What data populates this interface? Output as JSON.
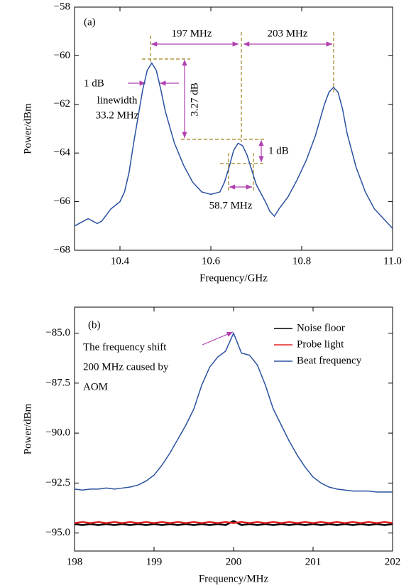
{
  "chart_data": [
    {
      "type": "line",
      "xlabel": "Frequency/GHz",
      "ylabel": "Power/dBm",
      "xlim": [
        10.3,
        11.0
      ],
      "ylim": [
        -68,
        -58
      ],
      "xticks": [
        10.4,
        10.6,
        10.8,
        {
          "value": 11,
          "label": "11.0"
        }
      ],
      "yticks": [
        {
          "value": -68,
          "label": "−68"
        },
        {
          "value": -66,
          "label": "−66"
        },
        {
          "value": -64,
          "label": "−64"
        },
        {
          "value": -62,
          "label": "−62"
        },
        {
          "value": -60,
          "label": "−60"
        },
        {
          "value": -58,
          "label": "−58"
        }
      ],
      "x": [
        10.3,
        10.32,
        10.33,
        10.35,
        10.36,
        10.38,
        10.4,
        10.41,
        10.42,
        10.43,
        10.44,
        10.45,
        10.46,
        10.47,
        10.48,
        10.49,
        10.5,
        10.52,
        10.54,
        10.56,
        10.58,
        10.6,
        10.62,
        10.63,
        10.64,
        10.65,
        10.66,
        10.67,
        10.68,
        10.69,
        10.7,
        10.72,
        10.73,
        10.74,
        10.75,
        10.77,
        10.79,
        10.81,
        10.83,
        10.85,
        10.86,
        10.87,
        10.88,
        10.89,
        10.9,
        10.92,
        10.94,
        10.96,
        10.98,
        11.0
      ],
      "series": [
        {
          "color": "#2a52a0",
          "values": [
            -67.0,
            -66.8,
            -66.7,
            -66.9,
            -66.8,
            -66.3,
            -66.0,
            -65.6,
            -64.8,
            -63.6,
            -62.5,
            -61.4,
            -60.6,
            -60.3,
            -60.6,
            -61.4,
            -62.3,
            -63.6,
            -64.5,
            -65.2,
            -65.6,
            -65.7,
            -65.6,
            -65.2,
            -64.6,
            -63.9,
            -63.6,
            -63.7,
            -64.1,
            -64.7,
            -65.3,
            -66.0,
            -66.4,
            -66.6,
            -66.3,
            -65.8,
            -65.1,
            -64.3,
            -63.3,
            -62.0,
            -61.5,
            -61.3,
            -61.5,
            -62.2,
            -63.2,
            -64.6,
            -65.6,
            -66.3,
            -66.7,
            -67.1
          ]
        }
      ],
      "annotations": [
        "(a)",
        "197 MHz",
        "203 MHz",
        "1 dB",
        "linewidth",
        "33.2 MHz",
        "3.27 dB",
        "1 dB",
        "58.7 MHz"
      ]
    },
    {
      "type": "line",
      "xlabel": "Frequency/MHz",
      "ylabel": "Power/dBm",
      "xlim": [
        198,
        202
      ],
      "ylim": [
        -95.9,
        -83.7
      ],
      "xticks": [
        198,
        199,
        200,
        201,
        202
      ],
      "yticks": [
        {
          "value": -95,
          "label": "−95.0"
        },
        {
          "value": -92.5,
          "label": "−92.5"
        },
        {
          "value": -90,
          "label": "−90.0"
        },
        {
          "value": -87.5,
          "label": "−87.5"
        },
        {
          "value": -85,
          "label": "−85.0"
        }
      ],
      "legend": "upper right",
      "x": [
        198.0,
        198.1,
        198.2,
        198.3,
        198.4,
        198.5,
        198.6,
        198.7,
        198.8,
        198.9,
        199.0,
        199.1,
        199.2,
        199.3,
        199.4,
        199.5,
        199.6,
        199.7,
        199.8,
        199.9,
        200.0,
        200.1,
        200.2,
        200.3,
        200.4,
        200.5,
        200.6,
        200.7,
        200.8,
        200.9,
        201.0,
        201.1,
        201.2,
        201.3,
        201.4,
        201.5,
        201.6,
        201.7,
        201.8,
        201.9,
        202.0
      ],
      "series": [
        {
          "name": "Noise floor",
          "color": "#000000",
          "values": [
            -94.55,
            -94.6,
            -94.55,
            -94.6,
            -94.55,
            -94.6,
            -94.55,
            -94.6,
            -94.55,
            -94.6,
            -94.55,
            -94.6,
            -94.55,
            -94.6,
            -94.55,
            -94.6,
            -94.55,
            -94.6,
            -94.55,
            -94.6,
            -94.4,
            -94.6,
            -94.55,
            -94.6,
            -94.55,
            -94.6,
            -94.55,
            -94.6,
            -94.55,
            -94.6,
            -94.55,
            -94.6,
            -94.55,
            -94.6,
            -94.55,
            -94.6,
            -94.55,
            -94.6,
            -94.55,
            -94.6,
            -94.55
          ]
        },
        {
          "name": "Probe light",
          "color": "#e02020",
          "values": [
            -94.5,
            -94.45,
            -94.5,
            -94.45,
            -94.5,
            -94.45,
            -94.5,
            -94.45,
            -94.5,
            -94.45,
            -94.5,
            -94.45,
            -94.5,
            -94.45,
            -94.5,
            -94.45,
            -94.5,
            -94.45,
            -94.5,
            -94.45,
            -94.5,
            -94.45,
            -94.5,
            -94.45,
            -94.5,
            -94.45,
            -94.5,
            -94.45,
            -94.5,
            -94.45,
            -94.5,
            -94.45,
            -94.5,
            -94.45,
            -94.5,
            -94.45,
            -94.5,
            -94.45,
            -94.5,
            -94.45,
            -94.5
          ]
        },
        {
          "name": "Beat frequency",
          "color": "#2a52a0",
          "values": [
            -92.8,
            -92.85,
            -92.8,
            -92.8,
            -92.75,
            -92.8,
            -92.75,
            -92.7,
            -92.6,
            -92.4,
            -92.1,
            -91.6,
            -91.0,
            -90.3,
            -89.6,
            -88.8,
            -87.6,
            -86.7,
            -86.2,
            -85.9,
            -85.0,
            -86.0,
            -86.1,
            -86.6,
            -87.6,
            -88.8,
            -89.6,
            -90.4,
            -91.1,
            -91.7,
            -92.2,
            -92.5,
            -92.7,
            -92.8,
            -92.85,
            -92.9,
            -92.9,
            -92.9,
            -92.95,
            -92.95,
            -92.95
          ]
        }
      ],
      "annotations": [
        "(b)",
        "The frequency shift",
        "200 MHz caused by",
        "AOM"
      ]
    }
  ]
}
